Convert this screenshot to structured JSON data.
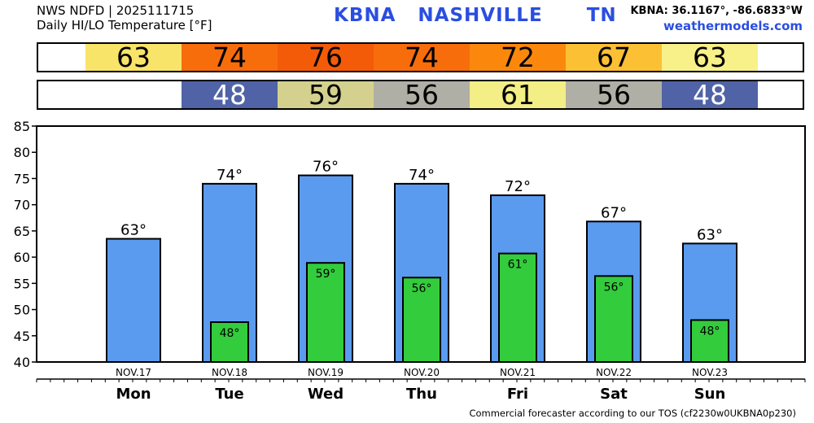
{
  "header": {
    "line1": "NWS NDFD | 2025111715",
    "line2": "Daily HI/LO Temperature [°F]",
    "station": "KBNA   NASHVILLE      TN",
    "coords": "KBNA: 36.1167°, -86.6833°W",
    "site": "weathermodels.com"
  },
  "hi_strip": [
    {
      "value": "63",
      "color": "#f8e468"
    },
    {
      "value": "74",
      "color": "#f76d0c"
    },
    {
      "value": "76",
      "color": "#f45b08"
    },
    {
      "value": "74",
      "color": "#f76d0c"
    },
    {
      "value": "72",
      "color": "#fb880d"
    },
    {
      "value": "67",
      "color": "#fbc034"
    },
    {
      "value": "63",
      "color": "#f8f189"
    }
  ],
  "lo_strip": [
    {
      "value": "",
      "color": "#ffffff"
    },
    {
      "value": "48",
      "color": "#5063a7"
    },
    {
      "value": "59",
      "color": "#d3d18d"
    },
    {
      "value": "56",
      "color": "#b0afa6"
    },
    {
      "value": "61",
      "color": "#f3ee86"
    },
    {
      "value": "56",
      "color": "#b0afa6"
    },
    {
      "value": "48",
      "color": "#5063a7"
    }
  ],
  "chart_data": {
    "type": "bar",
    "categories": [
      "Mon",
      "Tue",
      "Wed",
      "Thu",
      "Fri",
      "Sat",
      "Sun"
    ],
    "dates": [
      "NOV.17",
      "NOV.18",
      "NOV.19",
      "NOV.20",
      "NOV.21",
      "NOV.22",
      "NOV.23"
    ],
    "series": [
      {
        "values": [
          63.5,
          74,
          75.6,
          74,
          71.8,
          66.8,
          62.6
        ],
        "labels": [
          "63°",
          "74°",
          "76°",
          "74°",
          "72°",
          "67°",
          "63°"
        ],
        "color": "#5b9bef"
      },
      {
        "values": [
          null,
          47.6,
          58.9,
          56.1,
          60.7,
          56.4,
          48.0
        ],
        "labels": [
          "",
          "48°",
          "59°",
          "56°",
          "61°",
          "56°",
          "48°"
        ],
        "color": "#33cc3c"
      }
    ],
    "ylim": [
      40,
      85
    ],
    "yticks": [
      "40",
      "45",
      "50",
      "55",
      "60",
      "65",
      "70",
      "75",
      "80",
      "85"
    ],
    "grid": false
  },
  "footer": "Commercial forecaster according to our TOS (cf2230w0UKBNA0p230)"
}
